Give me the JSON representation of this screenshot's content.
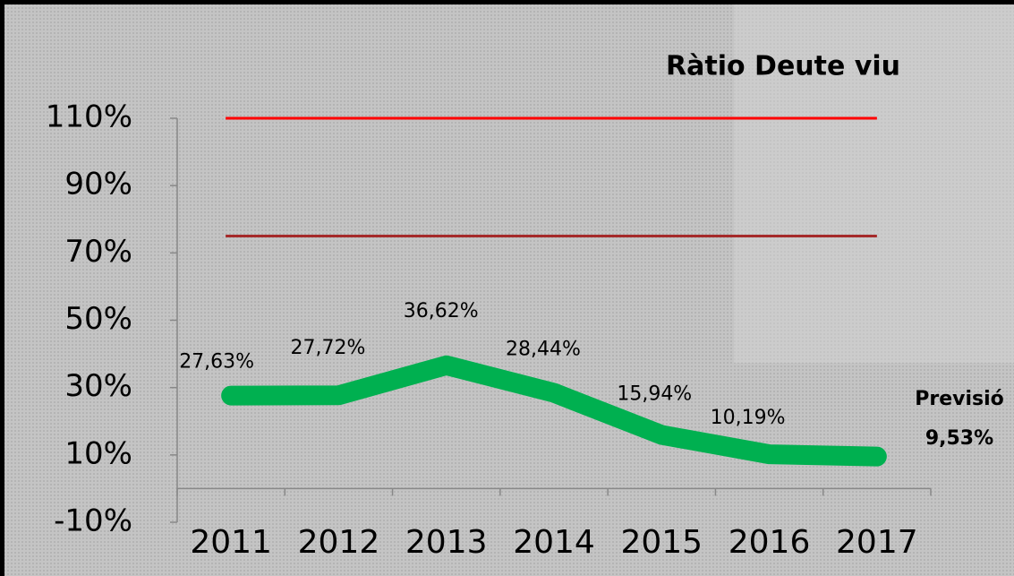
{
  "chart_data": {
    "type": "line",
    "title": "Ràtio Deute viu",
    "categories": [
      "2011",
      "2012",
      "2013",
      "2014",
      "2015",
      "2016",
      "2017"
    ],
    "series": [
      {
        "color": "#00b050",
        "values": [
          27.63,
          27.72,
          36.62,
          28.44,
          15.94,
          10.19,
          9.53
        ],
        "value_labels": [
          "27,63%",
          "27,72%",
          "36,62%",
          "28,44%",
          "15,94%",
          "10,19%",
          "9,53%"
        ]
      }
    ],
    "reference_lines": [
      {
        "value": 110,
        "color": "#ff0000"
      },
      {
        "value": 75,
        "color": "#a52a2a"
      }
    ],
    "annotation": "Previsió",
    "ylim": [
      -10,
      110
    ],
    "yticks": [
      {
        "value": -10,
        "label": "-10%"
      },
      {
        "value": 10,
        "label": "10%"
      },
      {
        "value": 30,
        "label": "30%"
      },
      {
        "value": 50,
        "label": "50%"
      },
      {
        "value": 70,
        "label": "70%"
      },
      {
        "value": 90,
        "label": "90%"
      },
      {
        "value": 110,
        "label": "110%"
      }
    ]
  }
}
